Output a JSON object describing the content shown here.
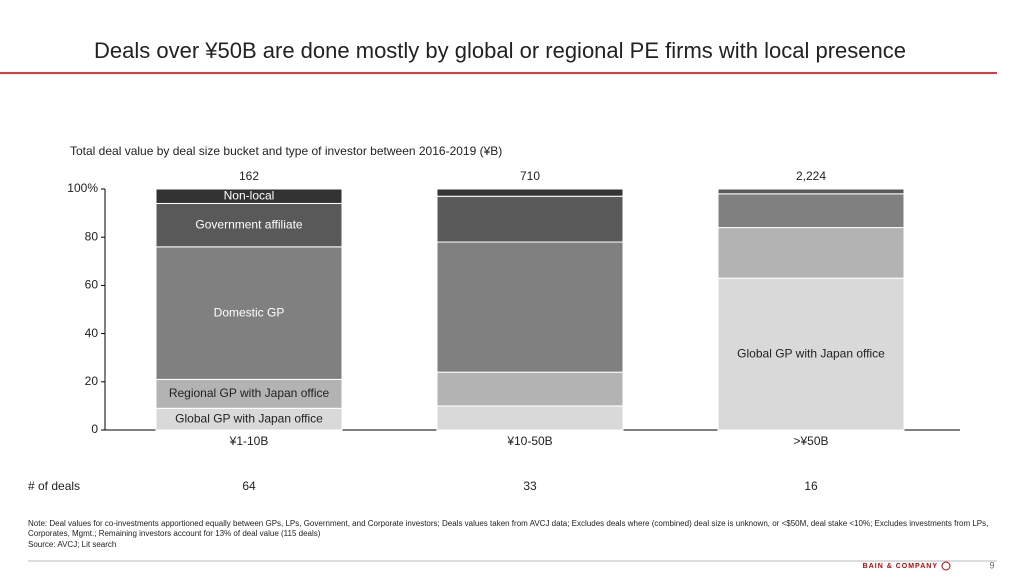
{
  "title": "Deals over ¥50B are done mostly by global or regional PE firms with local presence",
  "chart_data": {
    "type": "stacked_bar",
    "subtitle": "Total deal value by deal size bucket and type of investor between 2016-2019 (¥B)",
    "categories": [
      "¥1-10B",
      "¥10-50B",
      ">¥50B"
    ],
    "series": [
      {
        "name": "Global GP with Japan office",
        "color": "#d9d9d9",
        "values": [
          9,
          10,
          63
        ]
      },
      {
        "name": "Regional GP with Japan office",
        "color": "#b3b3b3",
        "values": [
          12,
          14,
          21
        ]
      },
      {
        "name": "Domestic GP",
        "color": "#808080",
        "values": [
          55,
          54,
          14
        ]
      },
      {
        "name": "Government affiliate",
        "color": "#595959",
        "values": [
          18,
          19,
          2
        ]
      },
      {
        "name": "Non-local",
        "color": "#333333",
        "values": [
          6,
          3,
          0
        ]
      }
    ],
    "totals": {
      "values": [
        162,
        710,
        2224
      ],
      "value_labels": [
        "162",
        "710",
        "2,224"
      ]
    },
    "deals": {
      "label": "# of deals",
      "values": [
        64,
        33,
        16
      ]
    },
    "ylim": [
      0,
      100
    ],
    "yticks": [
      0,
      20,
      40,
      60,
      80,
      {
        "value": 100,
        "label": "100%"
      }
    ]
  },
  "note": "Note: Deal values for co-investments apportioned equally between GPs, LPs, Government, and Corporate investors; Deals values taken from AVCJ data; Excludes deals where (combined) deal size is unknown, or <$50M, deal stake <10%; Excludes investments from LPs, Corporates, Mgmt.; Remaining investors account for 13% of deal value (115 deals)",
  "source": "Source: AVCJ; Lit search",
  "footer": {
    "brand": "BAIN & COMPANY",
    "page": "9"
  }
}
